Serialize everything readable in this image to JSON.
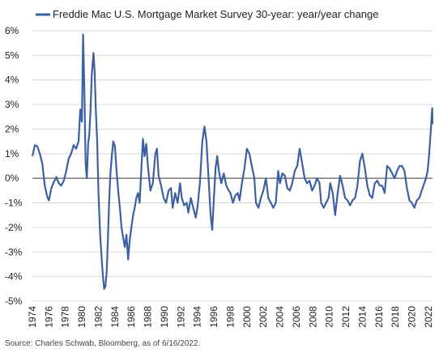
{
  "source": "Source: Charles Schwab, Bloomberg, as of 6/16/2022.",
  "chart_data": {
    "type": "line",
    "legend_position": "top-left",
    "series": [
      {
        "name": "Freddie Mac U.S. Mortgage Market Survey 30-year: year/year change",
        "color": "#3d5fa3",
        "points": [
          [
            1974.0,
            0.9
          ],
          [
            1974.3,
            1.35
          ],
          [
            1974.6,
            1.3
          ],
          [
            1974.9,
            1.0
          ],
          [
            1975.2,
            0.6
          ],
          [
            1975.5,
            -0.3
          ],
          [
            1975.8,
            -0.75
          ],
          [
            1976.0,
            -0.9
          ],
          [
            1976.3,
            -0.4
          ],
          [
            1976.6,
            -0.15
          ],
          [
            1976.9,
            0.05
          ],
          [
            1977.2,
            -0.2
          ],
          [
            1977.5,
            -0.3
          ],
          [
            1977.8,
            -0.1
          ],
          [
            1978.1,
            0.3
          ],
          [
            1978.4,
            0.8
          ],
          [
            1978.7,
            1.0
          ],
          [
            1979.0,
            1.35
          ],
          [
            1979.3,
            1.2
          ],
          [
            1979.6,
            1.5
          ],
          [
            1979.8,
            2.8
          ],
          [
            1980.0,
            2.3
          ],
          [
            1980.15,
            5.85
          ],
          [
            1980.3,
            3.5
          ],
          [
            1980.45,
            0.6
          ],
          [
            1980.6,
            0.0
          ],
          [
            1980.75,
            1.4
          ],
          [
            1980.9,
            1.8
          ],
          [
            1981.05,
            2.8
          ],
          [
            1981.2,
            4.2
          ],
          [
            1981.4,
            5.1
          ],
          [
            1981.55,
            4.3
          ],
          [
            1981.7,
            2.7
          ],
          [
            1981.85,
            1.5
          ],
          [
            1982.0,
            -0.5
          ],
          [
            1982.2,
            -2.2
          ],
          [
            1982.4,
            -3.3
          ],
          [
            1982.55,
            -4.0
          ],
          [
            1982.7,
            -4.5
          ],
          [
            1982.85,
            -4.4
          ],
          [
            1983.0,
            -3.8
          ],
          [
            1983.15,
            -2.5
          ],
          [
            1983.3,
            -1.0
          ],
          [
            1983.45,
            0.2
          ],
          [
            1983.6,
            0.8
          ],
          [
            1983.8,
            1.5
          ],
          [
            1984.0,
            1.3
          ],
          [
            1984.2,
            0.3
          ],
          [
            1984.4,
            -0.5
          ],
          [
            1984.6,
            -1.2
          ],
          [
            1984.8,
            -2.0
          ],
          [
            1985.0,
            -2.4
          ],
          [
            1985.2,
            -2.8
          ],
          [
            1985.4,
            -2.3
          ],
          [
            1985.6,
            -3.3
          ],
          [
            1985.8,
            -2.5
          ],
          [
            1986.0,
            -2.0
          ],
          [
            1986.2,
            -1.5
          ],
          [
            1986.4,
            -1.2
          ],
          [
            1986.6,
            -0.8
          ],
          [
            1986.8,
            -0.6
          ],
          [
            1987.0,
            -1.0
          ],
          [
            1987.2,
            0.3
          ],
          [
            1987.4,
            1.6
          ],
          [
            1987.6,
            0.9
          ],
          [
            1987.8,
            1.4
          ],
          [
            1988.0,
            0.5
          ],
          [
            1988.3,
            -0.5
          ],
          [
            1988.6,
            -0.2
          ],
          [
            1988.9,
            1.0
          ],
          [
            1989.1,
            1.2
          ],
          [
            1989.3,
            0.1
          ],
          [
            1989.6,
            -0.3
          ],
          [
            1989.9,
            -0.8
          ],
          [
            1990.2,
            -1.0
          ],
          [
            1990.5,
            -0.5
          ],
          [
            1990.8,
            -0.4
          ],
          [
            1991.0,
            -1.2
          ],
          [
            1991.3,
            -0.6
          ],
          [
            1991.6,
            -1.0
          ],
          [
            1991.9,
            -0.2
          ],
          [
            1992.1,
            -0.8
          ],
          [
            1992.4,
            -1.1
          ],
          [
            1992.7,
            -1.0
          ],
          [
            1992.9,
            -1.4
          ],
          [
            1993.2,
            -0.8
          ],
          [
            1993.5,
            -1.2
          ],
          [
            1993.8,
            -1.6
          ],
          [
            1994.0,
            -1.2
          ],
          [
            1994.3,
            -0.2
          ],
          [
            1994.6,
            1.5
          ],
          [
            1994.85,
            2.1
          ],
          [
            1995.1,
            1.5
          ],
          [
            1995.4,
            -0.3
          ],
          [
            1995.6,
            -1.5
          ],
          [
            1995.8,
            -2.1
          ],
          [
            1996.0,
            -0.8
          ],
          [
            1996.2,
            0.4
          ],
          [
            1996.4,
            0.9
          ],
          [
            1996.6,
            0.3
          ],
          [
            1996.9,
            -0.2
          ],
          [
            1997.2,
            0.2
          ],
          [
            1997.5,
            -0.3
          ],
          [
            1997.8,
            -0.5
          ],
          [
            1998.0,
            -0.6
          ],
          [
            1998.3,
            -1.0
          ],
          [
            1998.6,
            -0.7
          ],
          [
            1998.9,
            -0.6
          ],
          [
            1999.1,
            -0.9
          ],
          [
            1999.4,
            -0.2
          ],
          [
            1999.7,
            0.4
          ],
          [
            2000.0,
            1.2
          ],
          [
            2000.3,
            1.0
          ],
          [
            2000.6,
            0.5
          ],
          [
            2000.9,
            0.0
          ],
          [
            2001.1,
            -1.0
          ],
          [
            2001.4,
            -1.2
          ],
          [
            2001.7,
            -0.8
          ],
          [
            2002.0,
            -0.5
          ],
          [
            2002.3,
            0.0
          ],
          [
            2002.6,
            -0.8
          ],
          [
            2002.9,
            -1.0
          ],
          [
            2003.2,
            -1.2
          ],
          [
            2003.5,
            -1.0
          ],
          [
            2003.8,
            0.3
          ],
          [
            2004.0,
            -0.2
          ],
          [
            2004.3,
            0.2
          ],
          [
            2004.6,
            0.1
          ],
          [
            2004.9,
            -0.4
          ],
          [
            2005.2,
            -0.5
          ],
          [
            2005.5,
            -0.2
          ],
          [
            2005.8,
            0.3
          ],
          [
            2006.1,
            0.5
          ],
          [
            2006.4,
            1.2
          ],
          [
            2006.7,
            0.6
          ],
          [
            2007.0,
            0.0
          ],
          [
            2007.3,
            -0.2
          ],
          [
            2007.6,
            -0.1
          ],
          [
            2007.9,
            -0.5
          ],
          [
            2008.2,
            -0.3
          ],
          [
            2008.5,
            0.0
          ],
          [
            2008.8,
            -0.2
          ],
          [
            2009.0,
            -1.0
          ],
          [
            2009.3,
            -1.2
          ],
          [
            2009.6,
            -1.0
          ],
          [
            2009.9,
            -0.8
          ],
          [
            2010.1,
            -0.2
          ],
          [
            2010.4,
            -0.6
          ],
          [
            2010.7,
            -1.5
          ],
          [
            2011.0,
            -0.6
          ],
          [
            2011.3,
            0.1
          ],
          [
            2011.6,
            -0.3
          ],
          [
            2011.9,
            -0.8
          ],
          [
            2012.2,
            -0.9
          ],
          [
            2012.5,
            -1.1
          ],
          [
            2012.8,
            -0.9
          ],
          [
            2013.1,
            -0.8
          ],
          [
            2013.4,
            -0.3
          ],
          [
            2013.7,
            0.7
          ],
          [
            2014.0,
            1.0
          ],
          [
            2014.3,
            0.4
          ],
          [
            2014.6,
            -0.3
          ],
          [
            2014.9,
            -0.7
          ],
          [
            2015.2,
            -0.8
          ],
          [
            2015.5,
            -0.2
          ],
          [
            2015.8,
            -0.1
          ],
          [
            2016.1,
            -0.3
          ],
          [
            2016.4,
            -0.3
          ],
          [
            2016.7,
            -0.6
          ],
          [
            2017.0,
            0.5
          ],
          [
            2017.3,
            0.4
          ],
          [
            2017.6,
            0.2
          ],
          [
            2017.9,
            0.0
          ],
          [
            2018.2,
            0.3
          ],
          [
            2018.5,
            0.5
          ],
          [
            2018.8,
            0.5
          ],
          [
            2019.1,
            0.3
          ],
          [
            2019.4,
            -0.4
          ],
          [
            2019.7,
            -0.9
          ],
          [
            2020.0,
            -1.0
          ],
          [
            2020.3,
            -1.2
          ],
          [
            2020.6,
            -0.9
          ],
          [
            2020.9,
            -0.8
          ],
          [
            2021.1,
            -0.6
          ],
          [
            2021.4,
            -0.3
          ],
          [
            2021.7,
            0.0
          ],
          [
            2021.9,
            0.3
          ],
          [
            2022.1,
            1.0
          ],
          [
            2022.3,
            2.0
          ],
          [
            2022.46,
            2.85
          ],
          [
            2022.5,
            2.2
          ]
        ]
      }
    ],
    "xlim": [
      1974,
      2022.5
    ],
    "ylim": [
      -5,
      6
    ],
    "y_ticks": [
      {
        "value": 6,
        "label": "6%"
      },
      {
        "value": 5,
        "label": "5%"
      },
      {
        "value": 4,
        "label": "4%"
      },
      {
        "value": 3,
        "label": "3%"
      },
      {
        "value": 2,
        "label": "2%"
      },
      {
        "value": 1,
        "label": "1%"
      },
      {
        "value": 0,
        "label": "0%"
      },
      {
        "value": -1,
        "label": "-1%"
      },
      {
        "value": -2,
        "label": "-2%"
      },
      {
        "value": -3,
        "label": "-3%"
      },
      {
        "value": -4,
        "label": "-4%"
      },
      {
        "value": -5,
        "label": "-5%"
      }
    ],
    "x_ticks": [
      "1974",
      "1976",
      "1978",
      "1980",
      "1982",
      "1984",
      "1986",
      "1988",
      "1990",
      "1992",
      "1994",
      "1996",
      "1998",
      "2000",
      "2002",
      "2004",
      "2006",
      "2008",
      "2010",
      "2012",
      "2014",
      "2016",
      "2018",
      "2020",
      "2022"
    ],
    "grid": "horizontal"
  }
}
